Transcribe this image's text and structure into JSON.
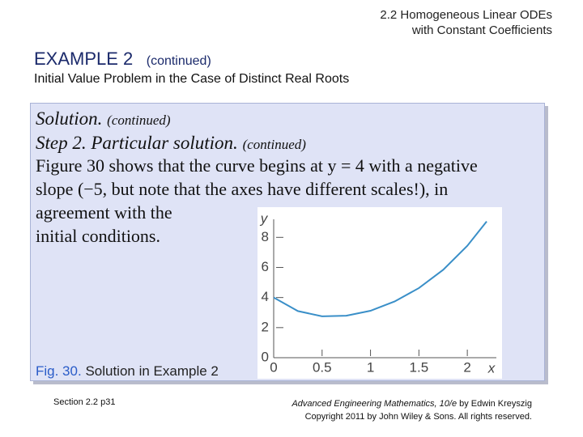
{
  "header": {
    "section": "2.2 Homogeneous Linear ODEs",
    "subsection": "with Constant Coefficients"
  },
  "example": {
    "title": "EXAMPLE 2",
    "note": "(continued)",
    "subtitle": "Initial Value Problem in the Case of Distinct Real Roots"
  },
  "body": {
    "solution": "Solution.",
    "solution_note": "(continued)",
    "step": "Step 2. Particular solution.",
    "step_note": "(continued)",
    "lines": [
      "Figure 30 shows that the curve begins at y = 4 with a negative",
      "slope (−5, but note that the axes have different scales!), in",
      "agreement with the",
      "initial conditions."
    ]
  },
  "caption": {
    "label": "Fig. 30.",
    "text": "Solution in Example 2"
  },
  "footer": {
    "left": "Section 2.2  p31",
    "book": "Advanced Engineering Mathematics, 10/e",
    "author": " by Edwin Kreyszig",
    "copyright": "Copyright 2011 by John Wiley & Sons.  All rights reserved."
  },
  "chart_data": {
    "type": "line",
    "xlabel": "x",
    "ylabel": "y",
    "x": [
      0,
      0.25,
      0.5,
      0.75,
      1,
      1.25,
      1.5,
      1.75,
      2,
      2.2
    ],
    "values": [
      4,
      3.1,
      2.75,
      2.79,
      3.12,
      3.74,
      4.63,
      5.84,
      7.44,
      9.06
    ],
    "xlim": [
      0,
      2.3
    ],
    "ylim": [
      0,
      9.2
    ],
    "xticks": [
      0,
      0.5,
      1,
      1.5,
      2
    ],
    "yticks": [
      0,
      2,
      4,
      6,
      8
    ],
    "color": "#3a8fc8"
  }
}
